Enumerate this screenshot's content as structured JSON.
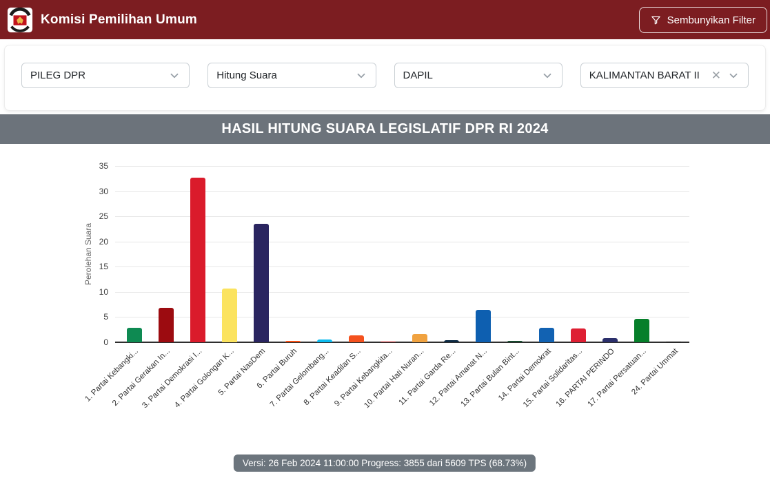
{
  "app": {
    "title": "Komisi Pemilihan Umum",
    "hide_filter_button": "Sembunyikan Filter"
  },
  "filters": [
    {
      "value": "PILEG DPR"
    },
    {
      "value": "Hitung Suara"
    },
    {
      "value": "DAPIL"
    },
    {
      "value": "KALIMANTAN BARAT II",
      "clearable": true
    }
  ],
  "chart_header": "HASIL HITUNG SUARA LEGISLATIF DPR RI 2024",
  "chart_data": {
    "type": "bar",
    "title": "HASIL HITUNG SUARA LEGISLATIF DPR RI 2024",
    "ylabel": "Perolehan Suara",
    "xlabel": "",
    "ylim": [
      0,
      35
    ],
    "ytick_step": 5,
    "grid": true,
    "legend": false,
    "categories": [
      "1. Partai Kebangki...",
      "2. Partai Gerakan In...",
      "3. Partai Demokrasi I...",
      "4. Partai Golongan K...",
      "5. Partai NasDem",
      "6. Partai Buruh",
      "7. Partai Gelombang...",
      "8. Partai Keadilan S...",
      "9. Partai Kebangkita...",
      "10. Partai Hati Nuran...",
      "11. Partai Garda Re...",
      "12. Partai Amanat N...",
      "13. Partai Bulan Bint...",
      "14. Partai Demokrat",
      "15. Partai Solidaritas...",
      "16. PARTAI PERINDO",
      "17. Partai Persatuan...",
      "24. Partai Ummat"
    ],
    "values": [
      2.9,
      6.8,
      32.7,
      10.6,
      23.5,
      0.3,
      0.5,
      1.4,
      0.2,
      1.7,
      0.4,
      6.4,
      0.3,
      2.9,
      2.7,
      0.8,
      4.6,
      0.2
    ],
    "colors": [
      "#0E8A52",
      "#9C0B10",
      "#DA1B2B",
      "#FBE35F",
      "#2A2560",
      "#F85014",
      "#0BBBEF",
      "#F4511E",
      "#B60D12",
      "#F0A240",
      "#0D2A43",
      "#0E5FB0",
      "#174A2E",
      "#1262B2",
      "#DE1F33",
      "#2B2F6B",
      "#067F2A",
      "#141414"
    ]
  },
  "footer": {
    "status_text": "Versi: 26 Feb 2024 11:00:00 Progress: 3855 dari 5609 TPS (68.73%)"
  }
}
